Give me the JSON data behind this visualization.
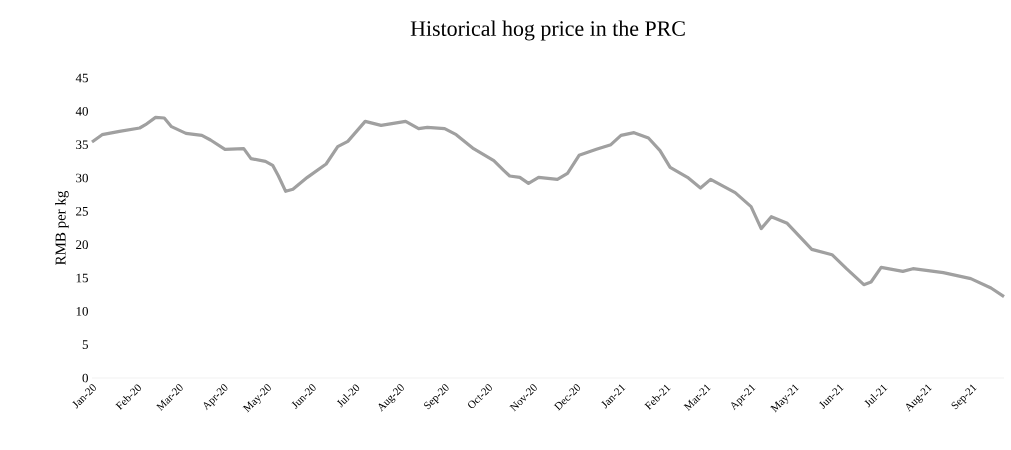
{
  "chart_data": {
    "type": "line",
    "title": "Historical hog price in the PRC",
    "ylabel": "RMB per kg",
    "x": [
      "2020-01-01",
      "2020-01-08",
      "2020-01-20",
      "2020-02-03",
      "2020-02-07",
      "2020-02-14",
      "2020-02-20",
      "2020-02-25",
      "2020-03-06",
      "2020-03-17",
      "2020-03-23",
      "2020-04-02",
      "2020-04-15",
      "2020-04-20",
      "2020-04-30",
      "2020-05-05",
      "2020-05-09",
      "2020-05-14",
      "2020-05-19",
      "2020-05-29",
      "2020-06-11",
      "2020-06-19",
      "2020-06-26",
      "2020-07-08",
      "2020-07-19",
      "2020-08-05",
      "2020-08-14",
      "2020-08-20",
      "2020-09-01",
      "2020-09-09",
      "2020-09-21",
      "2020-10-05",
      "2020-10-12",
      "2020-10-16",
      "2020-10-23",
      "2020-10-29",
      "2020-11-05",
      "2020-11-18",
      "2020-11-25",
      "2020-12-03",
      "2020-12-15",
      "2020-12-25",
      "2021-01-01",
      "2021-01-10",
      "2021-01-20",
      "2021-01-28",
      "2021-02-04",
      "2021-02-16",
      "2021-02-25",
      "2021-03-04",
      "2021-03-21",
      "2021-04-01",
      "2021-04-08",
      "2021-04-15",
      "2021-04-26",
      "2021-05-13",
      "2021-05-27",
      "2021-06-06",
      "2021-06-18",
      "2021-06-23",
      "2021-06-30",
      "2021-07-15",
      "2021-07-22",
      "2021-08-12",
      "2021-08-31",
      "2021-09-14",
      "2021-09-23"
    ],
    "series": [
      {
        "color": "#a0a0a0",
        "values": [
          35.4,
          36.5,
          37.0,
          37.5,
          38.0,
          39.1,
          39.0,
          37.7,
          36.7,
          36.4,
          35.7,
          34.3,
          34.4,
          32.9,
          32.5,
          31.9,
          30.3,
          28.0,
          28.3,
          30.1,
          32.1,
          34.7,
          35.5,
          38.5,
          37.9,
          38.5,
          37.4,
          37.6,
          37.4,
          36.5,
          34.4,
          32.6,
          31.1,
          30.3,
          30.1,
          29.2,
          30.1,
          29.8,
          30.7,
          33.4,
          34.3,
          35.0,
          36.4,
          36.8,
          36.0,
          34.1,
          31.6,
          30.1,
          28.5,
          29.8,
          27.8,
          25.7,
          22.4,
          24.2,
          23.2,
          19.3,
          18.5,
          16.4,
          14.0,
          14.4,
          16.6,
          16.0,
          16.4,
          15.8,
          14.9,
          13.5,
          12.2
        ]
      }
    ],
    "xticks": [
      {
        "value": "2020-01-01",
        "label": "Jan-20"
      },
      {
        "value": "2020-02-01",
        "label": "Feb-20"
      },
      {
        "value": "2020-03-01",
        "label": "Mar-20"
      },
      {
        "value": "2020-04-01",
        "label": "Apr-20"
      },
      {
        "value": "2020-05-01",
        "label": "May-20"
      },
      {
        "value": "2020-06-01",
        "label": "Jun-20"
      },
      {
        "value": "2020-07-01",
        "label": "Jul-20"
      },
      {
        "value": "2020-08-01",
        "label": "Aug-20"
      },
      {
        "value": "2020-09-01",
        "label": "Sep-20"
      },
      {
        "value": "2020-10-01",
        "label": "Oct-20"
      },
      {
        "value": "2020-11-01",
        "label": "Nov-20"
      },
      {
        "value": "2020-12-01",
        "label": "Dec-20"
      },
      {
        "value": "2021-01-01",
        "label": "Jan-21"
      },
      {
        "value": "2021-02-01",
        "label": "Feb-21"
      },
      {
        "value": "2021-03-01",
        "label": "Mar-21"
      },
      {
        "value": "2021-04-01",
        "label": "Apr-21"
      },
      {
        "value": "2021-05-01",
        "label": "May-21"
      },
      {
        "value": "2021-06-01",
        "label": "Jun-21"
      },
      {
        "value": "2021-07-01",
        "label": "Jul-21"
      },
      {
        "value": "2021-08-01",
        "label": "Aug-21"
      },
      {
        "value": "2021-09-01",
        "label": "Sep-21"
      }
    ],
    "ylim": [
      0,
      45
    ],
    "yticks": [
      0,
      5,
      10,
      15,
      20,
      25,
      30,
      35,
      40,
      45
    ],
    "xlim": [
      "2020-01-01",
      "2021-09-23"
    ],
    "marker": "none",
    "line_style": "solid"
  }
}
